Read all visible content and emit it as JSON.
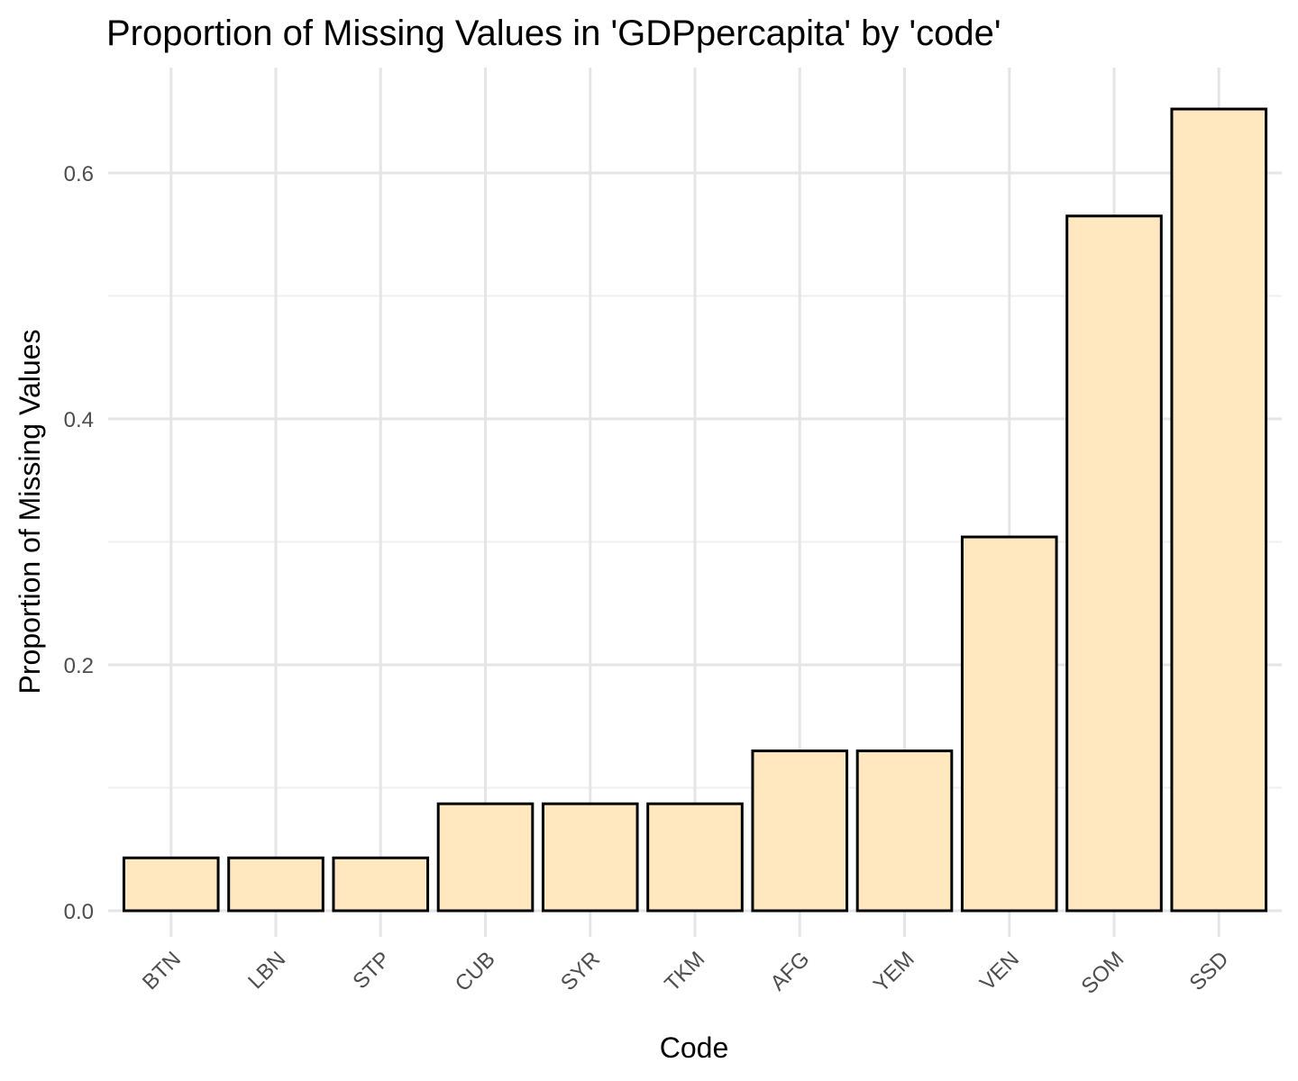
{
  "chart_data": {
    "type": "bar",
    "title": "Proportion of Missing Values in 'GDPpercapita' by 'code'",
    "xlabel": "Code",
    "ylabel": "Proportion of Missing Values",
    "categories": [
      "BTN",
      "LBN",
      "STP",
      "CUB",
      "SYR",
      "TKM",
      "AFG",
      "YEM",
      "VEN",
      "SOM",
      "SSD"
    ],
    "values": [
      0.043,
      0.043,
      0.043,
      0.087,
      0.087,
      0.087,
      0.13,
      0.13,
      0.304,
      0.565,
      0.652
    ],
    "ylim": [
      -0.02,
      0.68
    ],
    "yticks": [
      0.0,
      0.2,
      0.4,
      0.6
    ],
    "ytick_labels": [
      "0.0",
      "0.2",
      "0.4",
      "0.6"
    ],
    "grid": true,
    "bar_fill": "#FFE8C0",
    "bar_outline": "#000000"
  }
}
